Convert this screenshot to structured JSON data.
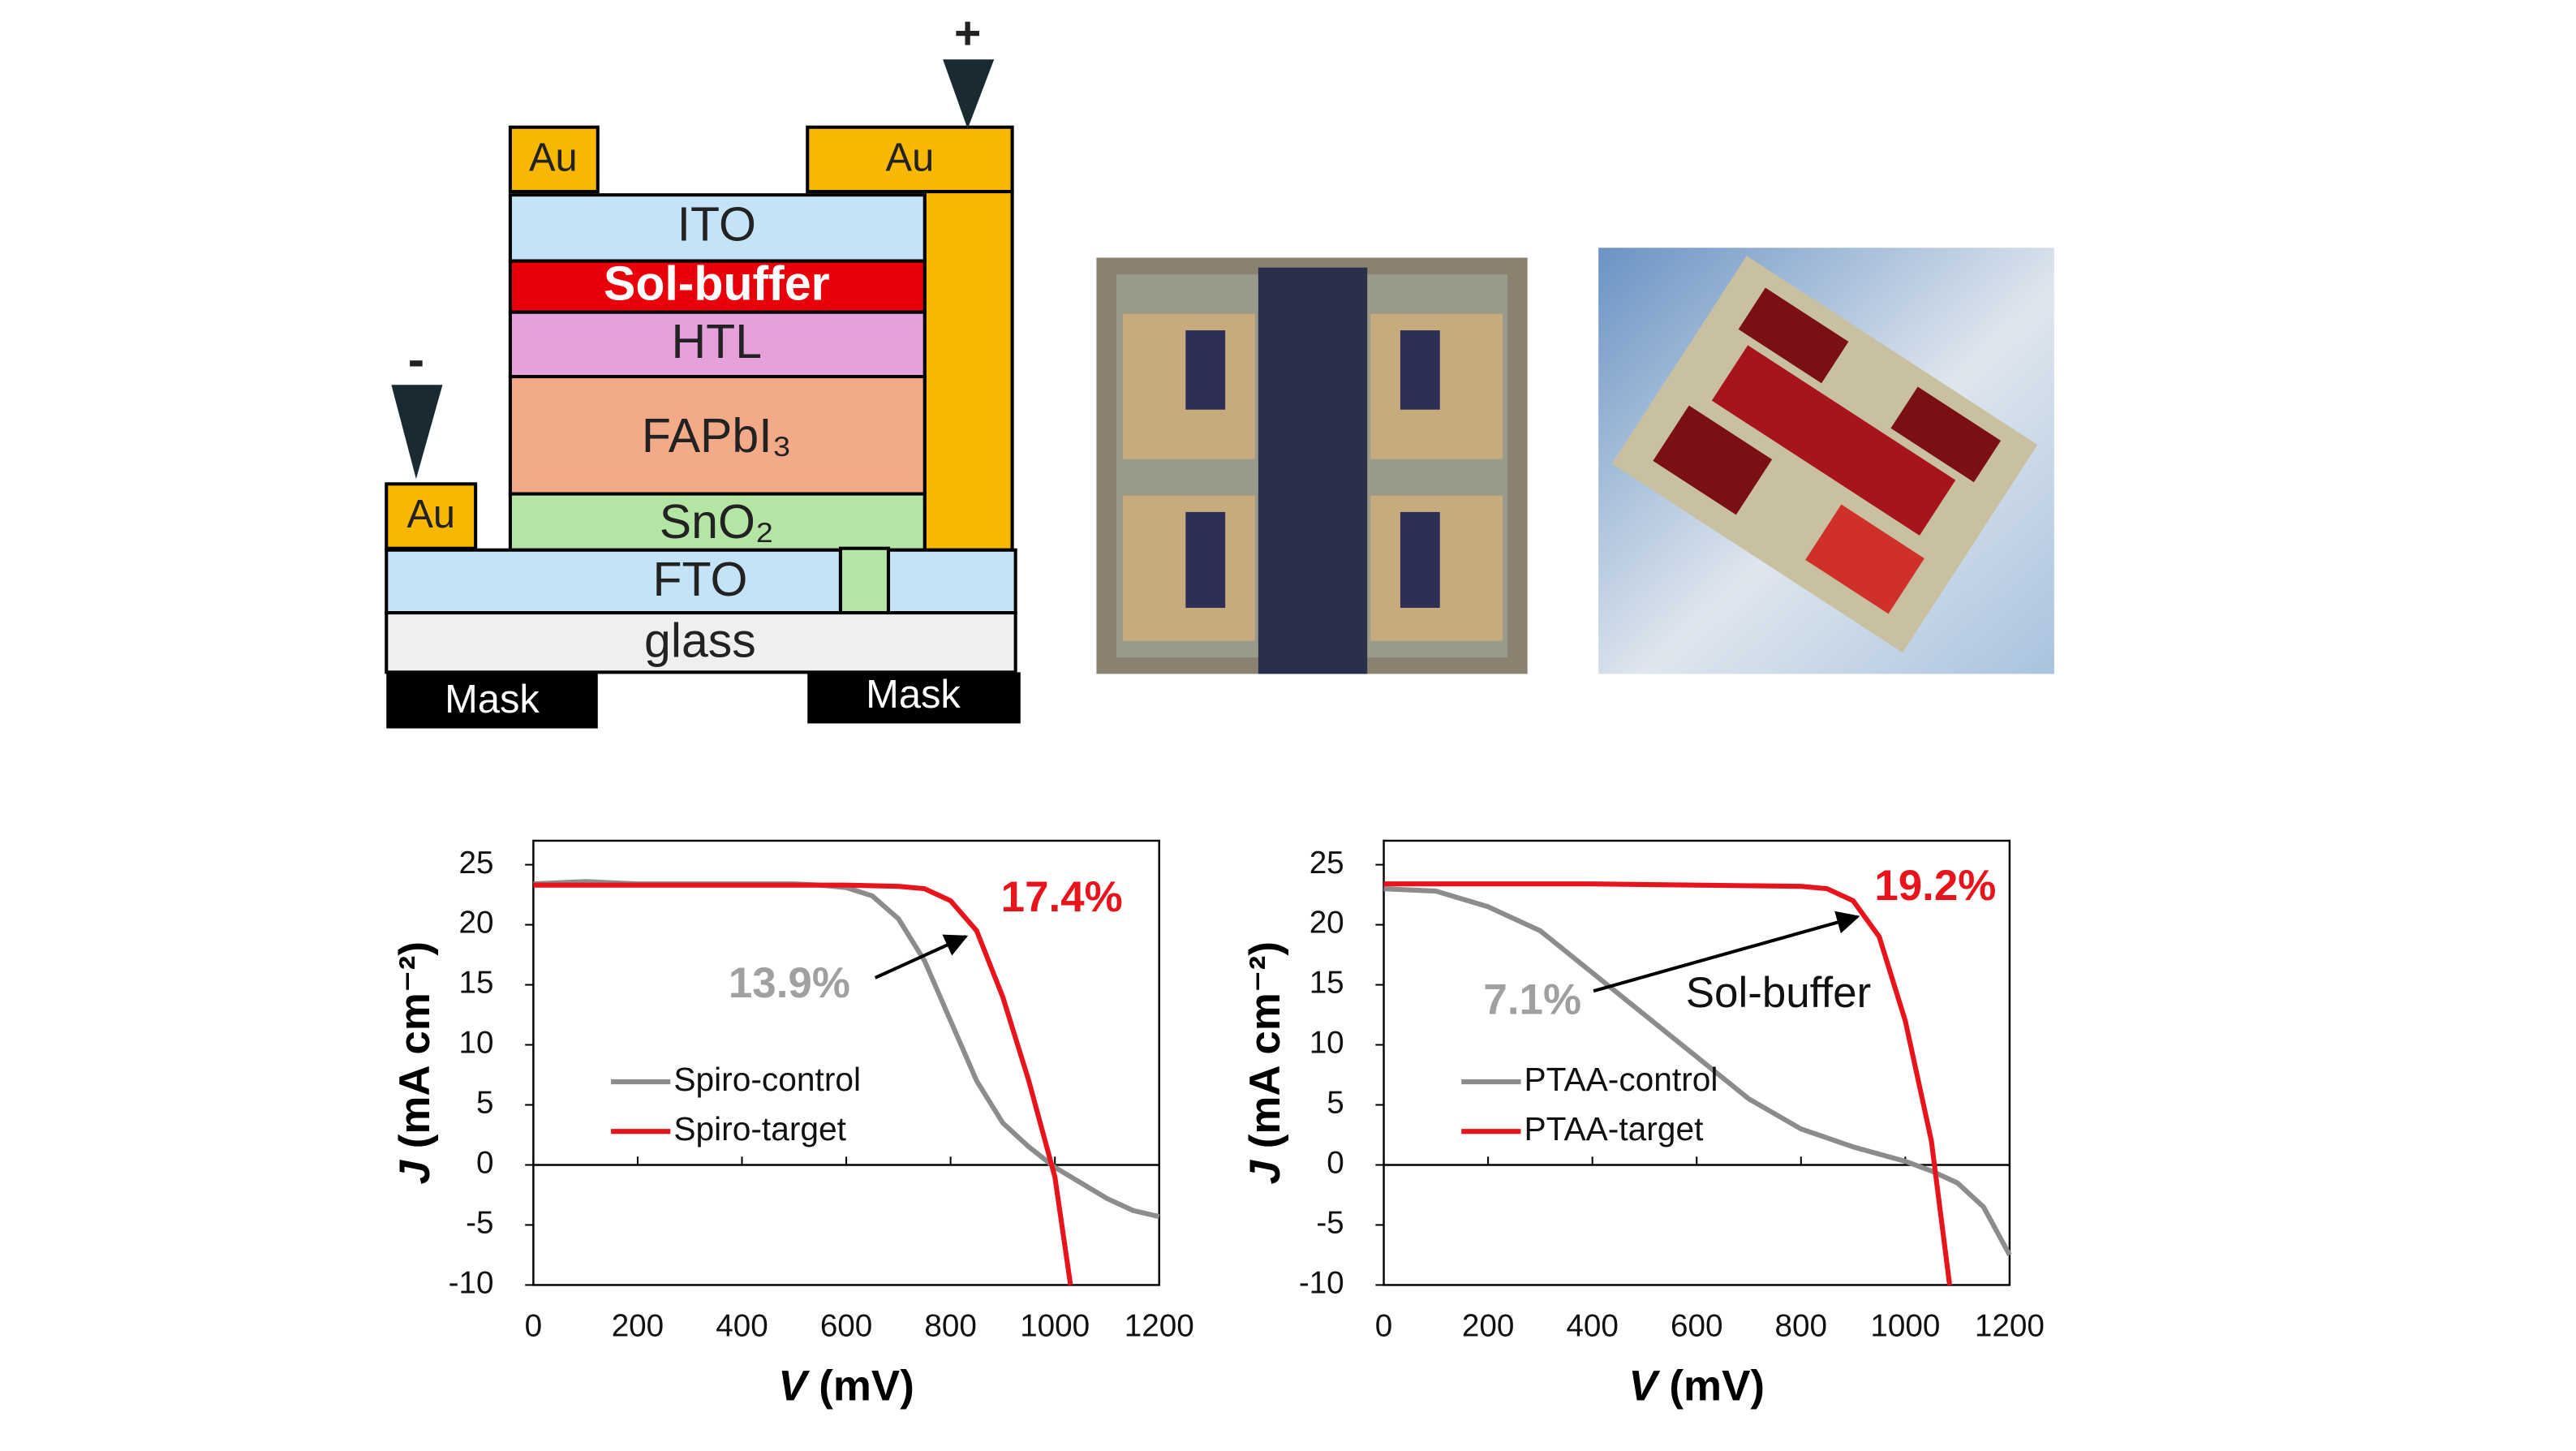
{
  "diagram": {
    "au": [
      "Au",
      "Au",
      "Au"
    ],
    "ito": "ITO",
    "sol_buffer": "Sol-buffer",
    "htl": "HTL",
    "fapbi3": "FAPbI₃",
    "sno2": "SnO₂",
    "fto": "FTO",
    "glass": "glass",
    "masks": [
      "Mask",
      "Mask"
    ],
    "minus": "-",
    "plus": "+"
  },
  "chart_data": [
    {
      "type": "line",
      "xlabel": {
        "symbol": "V",
        "unit": "(mV)"
      },
      "ylabel": {
        "symbol": "J",
        "unit": "(mA cm⁻²)"
      },
      "xlim": [
        0,
        1200
      ],
      "xticks": [
        0,
        200,
        400,
        600,
        800,
        1000,
        1200
      ],
      "ylim": [
        -10,
        27
      ],
      "yticks": [
        -10,
        -5,
        0,
        5,
        10,
        15,
        20,
        25
      ],
      "legend": "left",
      "series": [
        {
          "name": "Spiro-control",
          "color": "#8c8c8c",
          "x": [
            0,
            100,
            200,
            300,
            400,
            500,
            550,
            600,
            650,
            700,
            750,
            800,
            850,
            900,
            950,
            1000,
            1050,
            1100,
            1150,
            1200
          ],
          "values": [
            23.4,
            23.6,
            23.4,
            23.4,
            23.4,
            23.4,
            23.3,
            23.1,
            22.4,
            20.5,
            17,
            12,
            7,
            3.5,
            1.5,
            -0.2,
            -1.5,
            -2.8,
            -3.8,
            -4.3
          ]
        },
        {
          "name": "Spiro-target",
          "color": "#e8141c",
          "x": [
            0,
            100,
            200,
            300,
            400,
            500,
            600,
            700,
            750,
            800,
            850,
            900,
            950,
            1000,
            1030
          ],
          "values": [
            23.3,
            23.3,
            23.3,
            23.3,
            23.3,
            23.3,
            23.3,
            23.2,
            23,
            22,
            19.5,
            14,
            7,
            -1,
            -10
          ]
        }
      ],
      "annotations": [
        {
          "text": "17.4%",
          "color": "#e8141c"
        },
        {
          "text": "13.9%",
          "color": "#a0a0a0"
        }
      ]
    },
    {
      "type": "line",
      "xlabel": {
        "symbol": "V",
        "unit": "(mV)"
      },
      "ylabel": {
        "symbol": "J",
        "unit": "(mA cm⁻²)"
      },
      "xlim": [
        0,
        1200
      ],
      "xticks": [
        0,
        200,
        400,
        600,
        800,
        1000,
        1200
      ],
      "ylim": [
        -10,
        27
      ],
      "yticks": [
        -10,
        -5,
        0,
        5,
        10,
        15,
        20,
        25
      ],
      "legend": "left",
      "series": [
        {
          "name": "PTAA-control",
          "color": "#8c8c8c",
          "x": [
            0,
            100,
            200,
            300,
            400,
            500,
            600,
            700,
            800,
            900,
            1000,
            1050,
            1100,
            1150,
            1200
          ],
          "values": [
            23,
            22.8,
            21.5,
            19.5,
            16,
            12.5,
            9,
            5.5,
            3,
            1.5,
            0.3,
            -0.5,
            -1.5,
            -3.5,
            -7.5
          ]
        },
        {
          "name": "PTAA-target",
          "color": "#e8141c",
          "x": [
            0,
            200,
            400,
            600,
            800,
            850,
            900,
            950,
            1000,
            1050,
            1085
          ],
          "values": [
            23.4,
            23.4,
            23.4,
            23.3,
            23.2,
            23,
            22,
            19,
            12,
            2,
            -10
          ]
        }
      ],
      "annotations": [
        {
          "text": "19.2%",
          "color": "#e8141c"
        },
        {
          "text": "7.1%",
          "color": "#a0a0a0"
        },
        {
          "text": "Sol-buffer",
          "color": "#111"
        }
      ]
    }
  ]
}
